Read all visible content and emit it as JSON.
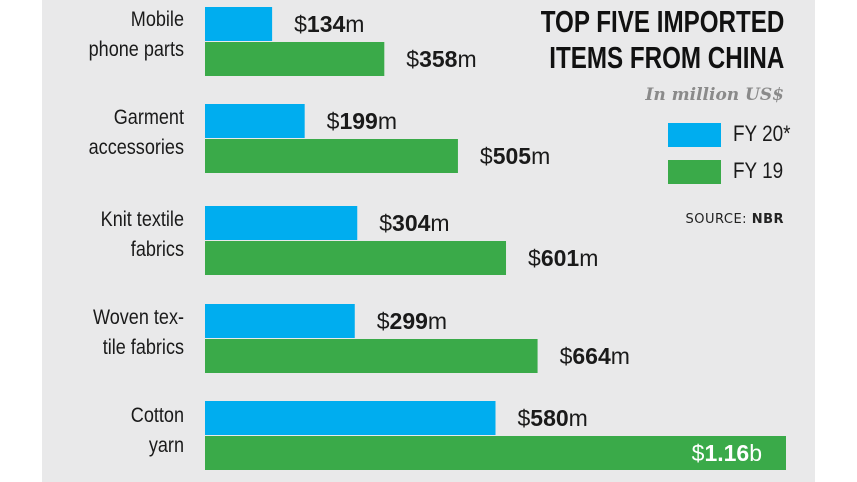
{
  "chart_data": {
    "type": "bar",
    "orientation": "horizontal",
    "title": [
      "TOP FIVE IMPORTED",
      "ITEMS FROM CHINA"
    ],
    "subtitle": "In million US$",
    "categories": [
      [
        "Mobile",
        "phone parts"
      ],
      [
        "Garment",
        "accessories"
      ],
      [
        "Knit textile",
        "fabrics"
      ],
      [
        "Woven tex-",
        "tile fabrics"
      ],
      [
        "Cotton",
        "yarn"
      ]
    ],
    "series": [
      {
        "name": "FY 20*",
        "color": "#00adef",
        "values": [
          134,
          199,
          304,
          299,
          580
        ],
        "labels": [
          {
            "prefix": "$",
            "num": "134",
            "suffix": "m"
          },
          {
            "prefix": "$",
            "num": "199",
            "suffix": "m"
          },
          {
            "prefix": "$",
            "num": "304",
            "suffix": "m"
          },
          {
            "prefix": "$",
            "num": "299",
            "suffix": "m"
          },
          {
            "prefix": "$",
            "num": "580",
            "suffix": "m"
          }
        ]
      },
      {
        "name": "FY 19",
        "color": "#3aaa49",
        "values": [
          358,
          505,
          601,
          664,
          1160
        ],
        "labels": [
          {
            "prefix": "$",
            "num": "358",
            "suffix": "m"
          },
          {
            "prefix": "$",
            "num": "505",
            "suffix": "m"
          },
          {
            "prefix": "$",
            "num": "601",
            "suffix": "m"
          },
          {
            "prefix": "$",
            "num": "664",
            "suffix": "m"
          },
          {
            "prefix": "$",
            "num": "1.16",
            "suffix": "b"
          }
        ]
      }
    ],
    "xlim": [
      0,
      1160
    ],
    "grid": false,
    "legend_position": "right",
    "source_prefix": "SOURCE: ",
    "source_name": "NBR"
  }
}
